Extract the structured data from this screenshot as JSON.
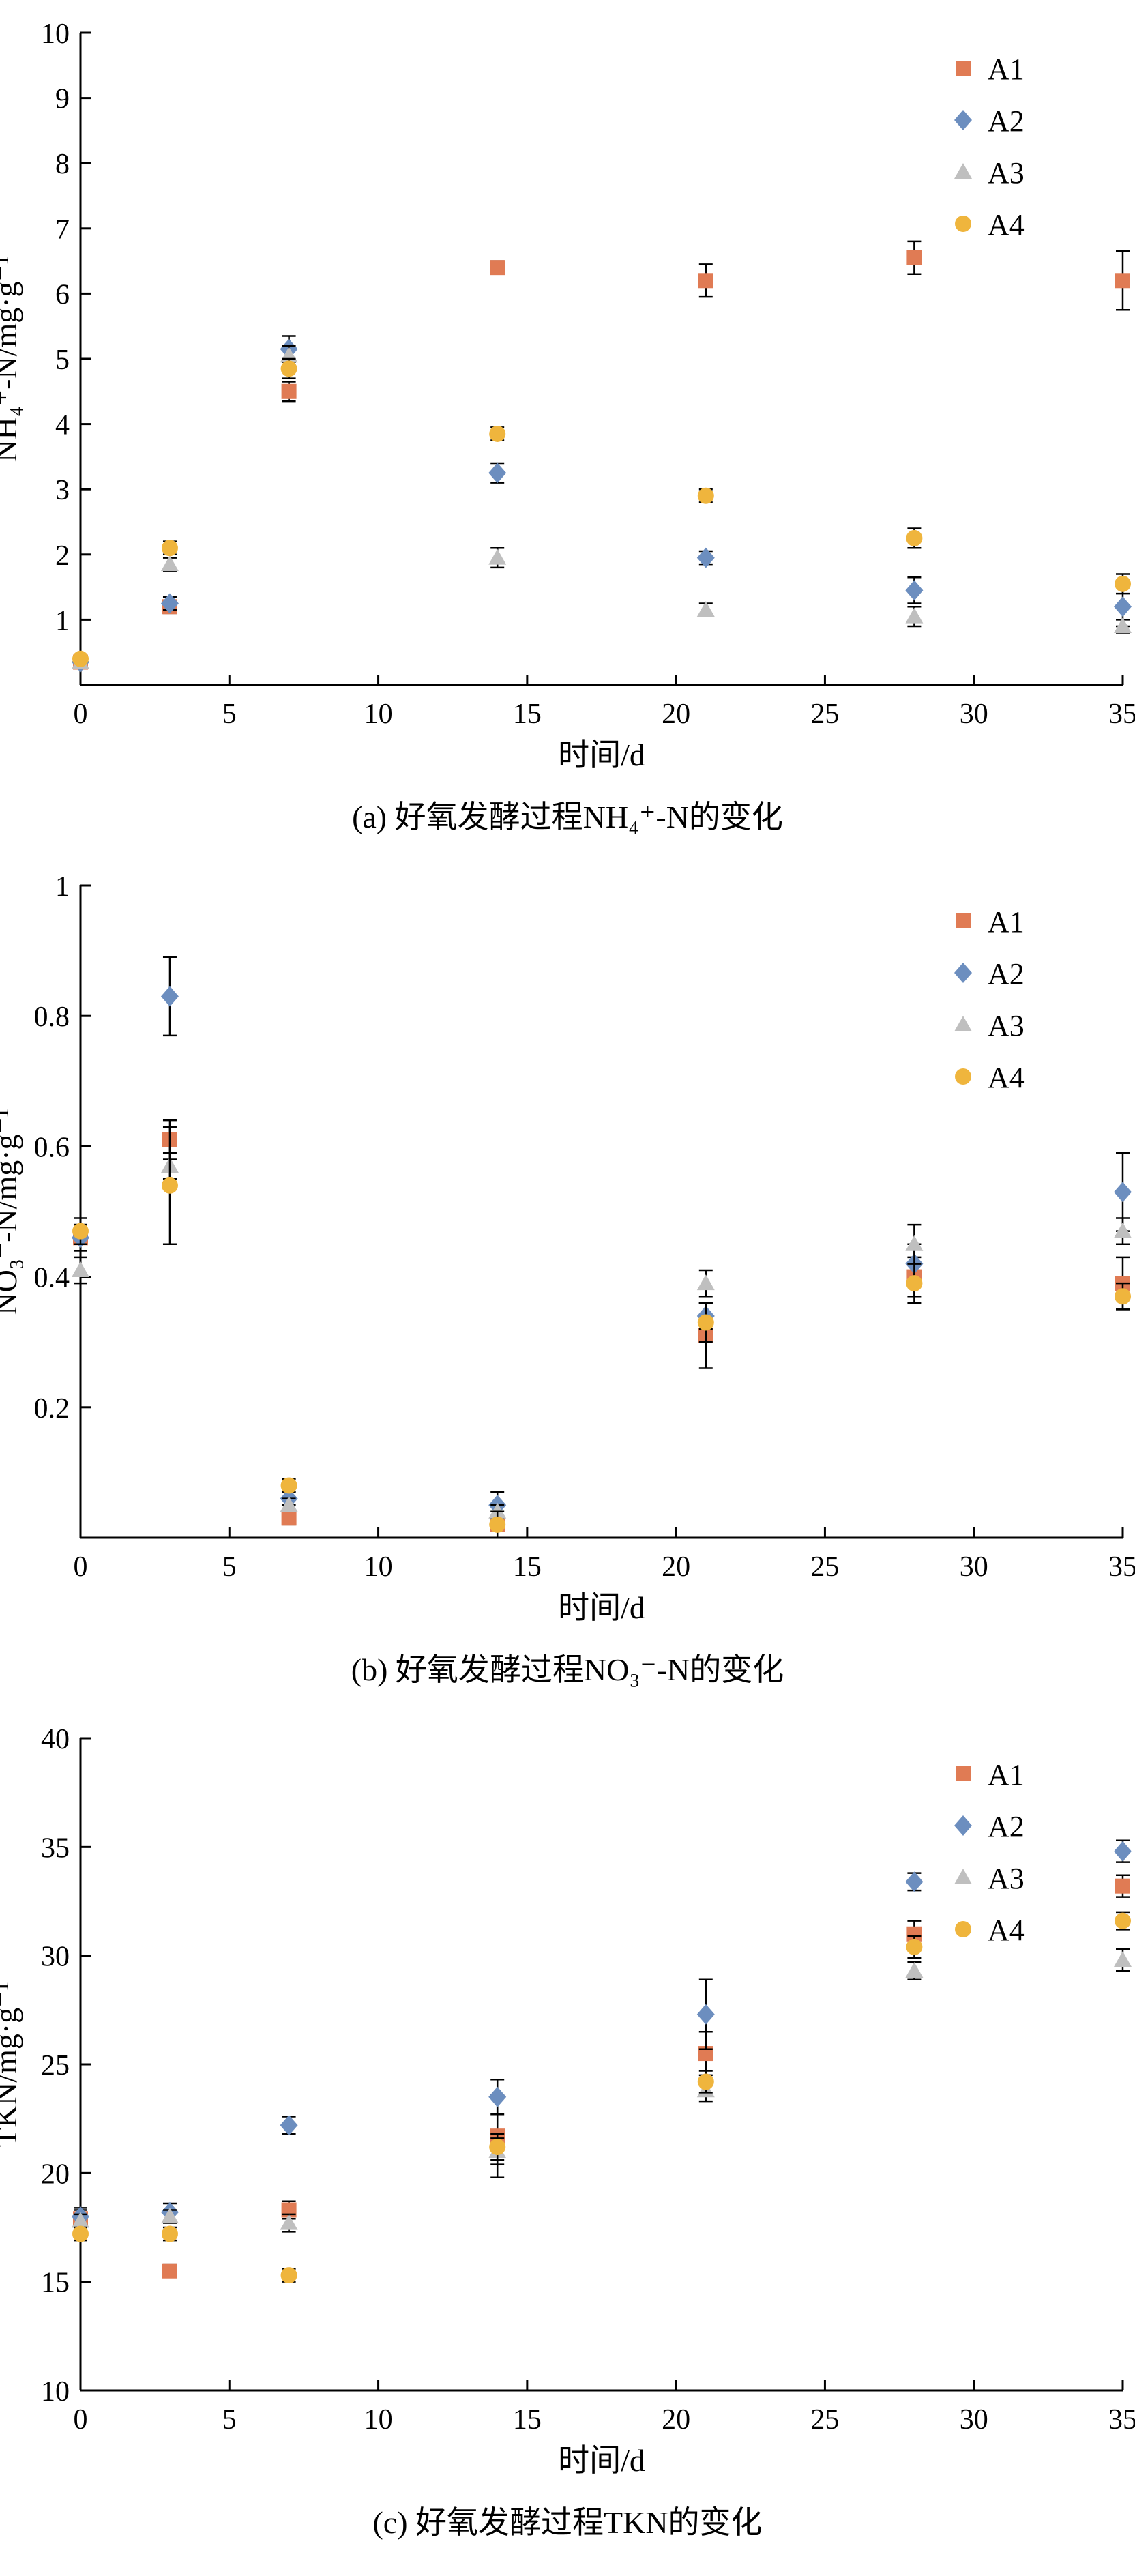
{
  "page": {
    "background": "#ffffff",
    "text_color": "#000000"
  },
  "chart_data": [
    {
      "id": "a",
      "type": "scatter",
      "caption": "(a) 好氧发酵过程NH₄⁺-N的变化",
      "xlabel": "时间/d",
      "ylabel": "NH₄⁺-N/mg·g⁻¹",
      "xlim": [
        0,
        35
      ],
      "ylim": [
        0,
        10
      ],
      "xticks": [
        0,
        5,
        10,
        15,
        20,
        25,
        30,
        35
      ],
      "yticks": [
        1,
        2,
        3,
        4,
        5,
        6,
        7,
        8,
        9,
        10
      ],
      "grid": false,
      "legend_position": "top-right-inside",
      "x": [
        0,
        3,
        7,
        14,
        21,
        28,
        35
      ],
      "series": [
        {
          "name": "A1",
          "marker": "square",
          "color": "#E07B54",
          "values": [
            0.35,
            1.2,
            4.5,
            6.4,
            6.2,
            6.55,
            6.2
          ],
          "errors": [
            0.05,
            0.1,
            0.15,
            0.1,
            0.25,
            0.25,
            0.45
          ]
        },
        {
          "name": "A2",
          "marker": "diamond",
          "color": "#6C8EBF",
          "values": [
            0.35,
            1.25,
            5.15,
            3.25,
            1.95,
            1.45,
            1.2
          ],
          "errors": [
            0.05,
            0.1,
            0.2,
            0.15,
            0.1,
            0.2,
            0.3
          ]
        },
        {
          "name": "A3",
          "marker": "triangle",
          "color": "#BFBFBF",
          "values": [
            0.35,
            1.85,
            5.05,
            1.95,
            1.15,
            1.05,
            0.9
          ],
          "errors": [
            0.05,
            0.1,
            0.15,
            0.15,
            0.1,
            0.15,
            0.1
          ]
        },
        {
          "name": "A4",
          "marker": "circle",
          "color": "#EFB53D",
          "values": [
            0.4,
            2.1,
            4.85,
            3.85,
            2.9,
            2.25,
            1.55
          ],
          "errors": [
            0.05,
            0.1,
            0.15,
            0.1,
            0.1,
            0.15,
            0.15
          ]
        }
      ]
    },
    {
      "id": "b",
      "type": "scatter",
      "caption": "(b) 好氧发酵过程NO₃⁻-N的变化",
      "xlabel": "时间/d",
      "ylabel": "NO₃⁻-N/mg·g⁻¹",
      "xlim": [
        0,
        35
      ],
      "ylim": [
        0,
        1
      ],
      "xticks": [
        0,
        5,
        10,
        15,
        20,
        25,
        30,
        35
      ],
      "yticks": [
        0.2,
        0.4,
        0.6,
        0.8,
        1
      ],
      "grid": false,
      "legend_position": "top-right-inside",
      "x": [
        0,
        3,
        7,
        14,
        21,
        28,
        35
      ],
      "series": [
        {
          "name": "A1",
          "marker": "square",
          "color": "#E07B54",
          "values": [
            0.46,
            0.61,
            0.03,
            0.02,
            0.31,
            0.4,
            0.39
          ],
          "errors": [
            0.02,
            0.03,
            0.01,
            0.01,
            0.05,
            0.03,
            0.04
          ]
        },
        {
          "name": "A2",
          "marker": "diamond",
          "color": "#6C8EBF",
          "values": [
            0.46,
            0.83,
            0.06,
            0.05,
            0.34,
            0.42,
            0.53
          ],
          "errors": [
            0.02,
            0.06,
            0.01,
            0.02,
            0.02,
            0.03,
            0.06
          ]
        },
        {
          "name": "A3",
          "marker": "triangle",
          "color": "#BFBFBF",
          "values": [
            0.41,
            0.57,
            0.05,
            0.04,
            0.39,
            0.45,
            0.47
          ],
          "errors": [
            0.02,
            0.02,
            0.01,
            0.01,
            0.02,
            0.03,
            0.02
          ]
        },
        {
          "name": "A4",
          "marker": "circle",
          "color": "#EFB53D",
          "values": [
            0.47,
            0.54,
            0.08,
            0.02,
            0.33,
            0.39,
            0.37
          ],
          "errors": [
            0.02,
            0.09,
            0.01,
            0.02,
            0.03,
            0.03,
            0.02
          ]
        }
      ]
    },
    {
      "id": "c",
      "type": "scatter",
      "caption": "(c) 好氧发酵过程TKN的变化",
      "xlabel": "时间/d",
      "ylabel": "TKN/mg·g⁻¹",
      "xlim": [
        0,
        35
      ],
      "ylim": [
        10,
        40
      ],
      "xticks": [
        0,
        5,
        10,
        15,
        20,
        25,
        30,
        35
      ],
      "yticks": [
        10,
        15,
        20,
        25,
        30,
        35,
        40
      ],
      "grid": false,
      "legend_position": "top-right-inside",
      "x": [
        0,
        3,
        7,
        14,
        21,
        28,
        35
      ],
      "series": [
        {
          "name": "A1",
          "marker": "square",
          "color": "#E07B54",
          "values": [
            17.9,
            15.5,
            18.3,
            21.7,
            25.5,
            31.0,
            33.2
          ],
          "errors": [
            0.4,
            0.3,
            0.4,
            1.9,
            1.0,
            0.6,
            0.5
          ]
        },
        {
          "name": "A2",
          "marker": "diamond",
          "color": "#6C8EBF",
          "values": [
            18.0,
            18.2,
            22.2,
            23.5,
            27.3,
            33.4,
            34.8
          ],
          "errors": [
            0.4,
            0.4,
            0.4,
            0.8,
            1.6,
            0.4,
            0.5
          ]
        },
        {
          "name": "A3",
          "marker": "triangle",
          "color": "#BFBFBF",
          "values": [
            17.8,
            18.0,
            17.7,
            21.0,
            23.8,
            29.3,
            29.8
          ],
          "errors": [
            0.3,
            0.3,
            0.4,
            0.6,
            0.5,
            0.4,
            0.5
          ]
        },
        {
          "name": "A4",
          "marker": "circle",
          "color": "#EFB53D",
          "values": [
            17.2,
            17.2,
            15.3,
            21.2,
            24.2,
            30.4,
            31.6
          ],
          "errors": [
            0.3,
            0.3,
            0.3,
            0.6,
            0.5,
            0.5,
            0.4
          ]
        }
      ]
    }
  ]
}
